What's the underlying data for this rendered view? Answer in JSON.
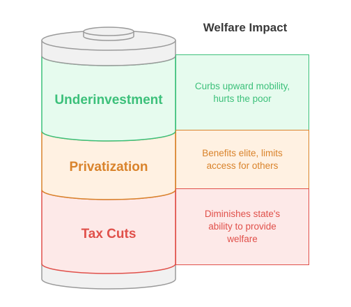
{
  "title": "Welfare Impact",
  "layers": [
    {
      "label": "Underinvestment",
      "description": "Curbs upward mobility, hurts the poor",
      "color": "#3cc07a",
      "fill": "#e6fbee"
    },
    {
      "label": "Privatization",
      "description": "Benefits elite, limits access for others",
      "color": "#d9832b",
      "fill": "#fff1e2"
    },
    {
      "label": "Tax Cuts",
      "description": "Diminishes state's ability to provide welfare",
      "color": "#e0504a",
      "fill": "#fde9e8"
    }
  ],
  "battery_color": "#9a9a9a",
  "battery_fill": "#f1f1f1"
}
